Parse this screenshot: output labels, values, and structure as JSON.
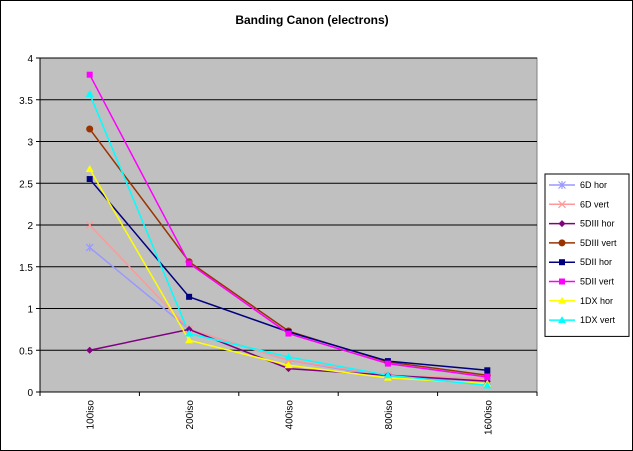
{
  "chart_data": {
    "type": "line",
    "title": "Banding Canon (electrons)",
    "xlabel": "",
    "ylabel": "",
    "categories": [
      "100iso",
      "200iso",
      "400iso",
      "800iso",
      "1600iso"
    ],
    "ylim": [
      0,
      4
    ],
    "yticks": [
      "0",
      "0.5",
      "1",
      "1.5",
      "2",
      "2.5",
      "3",
      "3.5",
      "4"
    ],
    "grid": true,
    "legend_position": "right",
    "plot_background": "#c0c0c0",
    "series": [
      {
        "name": "6D hor",
        "color": "#9999ff",
        "marker": "star",
        "values": [
          1.73,
          0.75,
          0.38,
          0.18,
          0.13
        ]
      },
      {
        "name": "6D vert",
        "color": "#ff9999",
        "marker": "x",
        "values": [
          2.0,
          0.75,
          0.38,
          0.2,
          0.16
        ]
      },
      {
        "name": "5DIII hor",
        "color": "#800080",
        "marker": "diamond",
        "values": [
          0.5,
          0.75,
          0.28,
          0.2,
          0.13
        ]
      },
      {
        "name": "5DIII vert",
        "color": "#993300",
        "marker": "circle",
        "values": [
          3.15,
          1.56,
          0.73,
          0.36,
          0.2
        ]
      },
      {
        "name": "5DII hor",
        "color": "#000080",
        "marker": "square",
        "values": [
          2.55,
          1.14,
          0.72,
          0.37,
          0.26
        ]
      },
      {
        "name": "5DII vert",
        "color": "#ff00ff",
        "marker": "square",
        "values": [
          3.8,
          1.54,
          0.7,
          0.34,
          0.18
        ]
      },
      {
        "name": "1DX hor",
        "color": "#ffff00",
        "marker": "triangle",
        "values": [
          2.67,
          0.62,
          0.32,
          0.17,
          0.1
        ]
      },
      {
        "name": "1DX vert",
        "color": "#00ffff",
        "marker": "triangle",
        "values": [
          3.57,
          0.7,
          0.42,
          0.2,
          0.08
        ]
      }
    ]
  }
}
